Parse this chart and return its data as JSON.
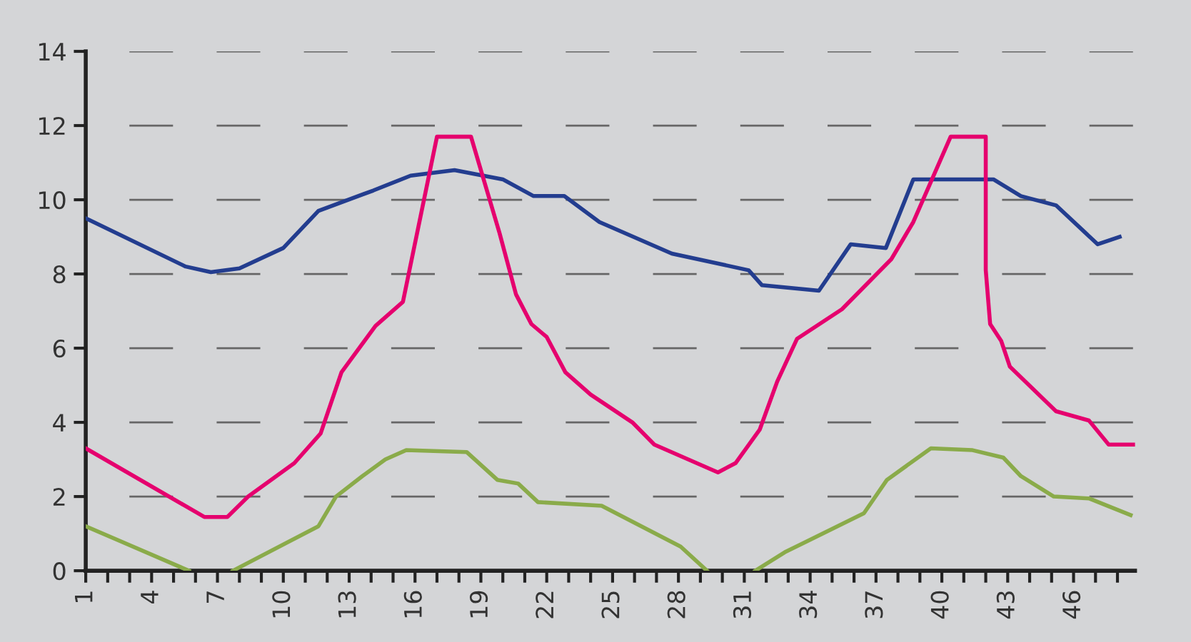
{
  "chart_data": {
    "type": "line",
    "xlim": [
      1,
      48.8
    ],
    "ylim": [
      0,
      14
    ],
    "yticks": [
      0,
      2,
      4,
      6,
      8,
      10,
      12,
      14
    ],
    "xticks": [
      1,
      {
        "value": 2,
        "label": null
      },
      {
        "value": 3,
        "label": null
      },
      4,
      {
        "value": 5,
        "label": null
      },
      {
        "value": 6,
        "label": null
      },
      7,
      {
        "value": 8,
        "label": null
      },
      {
        "value": 9,
        "label": null
      },
      10,
      {
        "value": 11,
        "label": null
      },
      {
        "value": 12,
        "label": null
      },
      13,
      {
        "value": 14,
        "label": null
      },
      {
        "value": 15,
        "label": null
      },
      16,
      {
        "value": 17,
        "label": null
      },
      {
        "value": 18,
        "label": null
      },
      19,
      {
        "value": 20,
        "label": null
      },
      {
        "value": 21,
        "label": null
      },
      22,
      {
        "value": 23,
        "label": null
      },
      {
        "value": 24,
        "label": null
      },
      25,
      {
        "value": 26,
        "label": null
      },
      {
        "value": 27,
        "label": null
      },
      28,
      {
        "value": 29,
        "label": null
      },
      {
        "value": 30,
        "label": null
      },
      31,
      {
        "value": 32,
        "label": null
      },
      {
        "value": 33,
        "label": null
      },
      34,
      {
        "value": 35,
        "label": null
      },
      {
        "value": 36,
        "label": null
      },
      37,
      {
        "value": 38,
        "label": null
      },
      {
        "value": 39,
        "label": null
      },
      40,
      {
        "value": 41,
        "label": null
      },
      {
        "value": 42,
        "label": null
      },
      43,
      {
        "value": 44,
        "label": null
      },
      {
        "value": 45,
        "label": null
      },
      46,
      {
        "value": 47,
        "label": null
      },
      {
        "value": 48,
        "label": null
      }
    ],
    "grid": "y",
    "marker": "none",
    "line_style": "solid",
    "series": [
      {
        "color": "#233d8f",
        "x": [
          1,
          5.55,
          6.7,
          8.0,
          10.0,
          11.6,
          14.1,
          15.8,
          17.8,
          20.0,
          21.4,
          22.8,
          24.4,
          27.7,
          31.2,
          31.8,
          34.4,
          35.85,
          37.45,
          38.7,
          42.35,
          43.6,
          45.2,
          47.1,
          48.1
        ],
        "values": [
          9.5,
          8.2,
          8.05,
          8.15,
          8.7,
          9.7,
          10.25,
          10.65,
          10.8,
          10.55,
          10.1,
          10.1,
          9.4,
          8.55,
          8.1,
          7.7,
          7.55,
          8.8,
          8.7,
          10.55,
          10.55,
          10.1,
          9.85,
          8.8,
          9.0
        ]
      },
      {
        "color": "#e5006e",
        "x": [
          1,
          6.4,
          7.45,
          8.4,
          10.5,
          11.7,
          12.65,
          14.2,
          15.45,
          17.0,
          18.55,
          19.85,
          20.6,
          21.3,
          22.0,
          22.85,
          24.0,
          25.9,
          26.9,
          29.8,
          30.6,
          31.7,
          32.5,
          33.4,
          35.45,
          37.7,
          38.7,
          40.4,
          42.0,
          42.0,
          42.2,
          42.7,
          43.1,
          45.2,
          46.7,
          47.6,
          48.8
        ],
        "values": [
          3.3,
          1.45,
          1.45,
          2.0,
          2.9,
          3.7,
          5.35,
          6.6,
          7.25,
          11.7,
          11.7,
          9.1,
          7.45,
          6.65,
          6.3,
          5.35,
          4.75,
          4.0,
          3.4,
          2.65,
          2.9,
          3.8,
          5.1,
          6.25,
          7.05,
          8.4,
          9.4,
          11.7,
          11.7,
          8.1,
          6.65,
          6.2,
          5.5,
          4.3,
          4.05,
          3.4,
          3.4
        ]
      },
      {
        "color": "#8aab4a",
        "x": [
          1,
          5.7,
          6.7,
          7.7,
          11.6,
          12.4,
          13.6,
          14.65,
          15.6,
          18.35,
          19.75,
          20.7,
          21.6,
          24.5,
          28.1,
          29.3,
          30.4,
          31.5,
          32.85,
          36.45,
          37.5,
          39.5,
          41.4,
          42.8,
          43.6,
          45.1,
          46.7,
          48.6
        ],
        "values": [
          1.2,
          0,
          null,
          0,
          1.2,
          2.0,
          2.55,
          3.0,
          3.25,
          3.2,
          2.45,
          2.35,
          1.85,
          1.75,
          0.65,
          0,
          null,
          0,
          0.5,
          1.55,
          2.45,
          3.3,
          3.25,
          3.05,
          2.55,
          2.0,
          1.95,
          1.5
        ]
      }
    ]
  }
}
